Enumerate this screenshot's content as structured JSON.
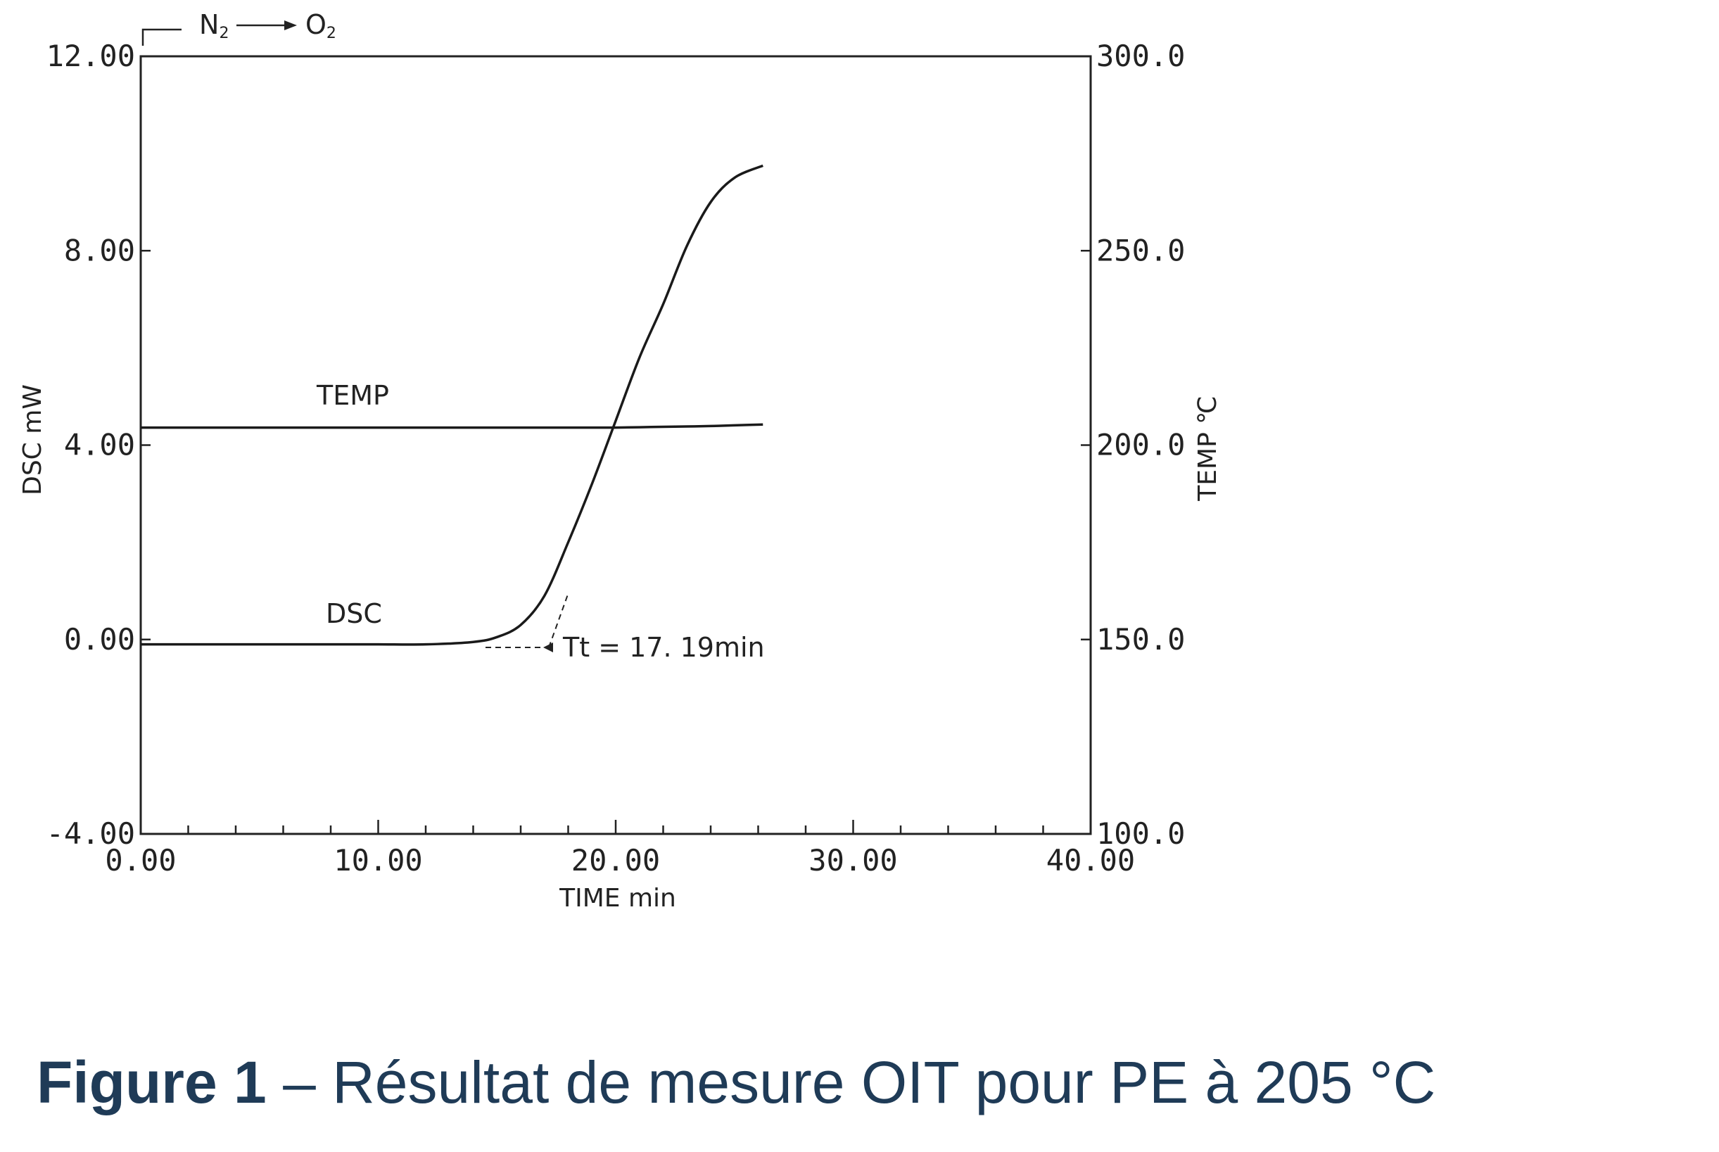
{
  "chart_data": {
    "type": "line",
    "x": [
      0,
      2,
      4,
      6,
      8,
      10,
      12,
      14,
      15,
      16,
      17,
      18,
      19,
      20,
      21,
      22,
      23,
      24,
      25,
      26.2
    ],
    "series": [
      {
        "name": "TEMP",
        "axis": "right",
        "values": [
          204.5,
          204.5,
          204.5,
          204.5,
          204.5,
          204.5,
          204.5,
          204.5,
          204.5,
          204.5,
          204.5,
          204.5,
          204.5,
          204.5,
          204.6,
          204.7,
          204.8,
          204.9,
          205.1,
          205.3
        ]
      },
      {
        "name": "DSC",
        "axis": "left",
        "values": [
          -0.1,
          -0.1,
          -0.1,
          -0.1,
          -0.1,
          -0.1,
          -0.1,
          -0.05,
          0.05,
          0.3,
          0.9,
          2.0,
          3.2,
          4.5,
          5.8,
          6.9,
          8.1,
          9.0,
          9.5,
          9.75
        ]
      }
    ],
    "xlabel": "TIME  min",
    "ylabel": "DSC  mW",
    "y2label": "TEMP  ℃",
    "xlim": [
      0,
      40
    ],
    "ylim": [
      -4,
      12
    ],
    "y2lim": [
      100,
      300
    ],
    "x_ticks": [
      "0.00",
      "10.00",
      "20.00",
      "30.00",
      "40.00"
    ],
    "y_ticks": [
      "-4.00",
      "0.00",
      "4.00",
      "8.00",
      "12.00"
    ],
    "y2_ticks": [
      "100.0",
      "150.0",
      "200.0",
      "250.0",
      "300.0"
    ],
    "y_tick_values": [
      -4,
      0,
      4,
      8,
      12
    ],
    "y2_tick_values": [
      100,
      150,
      200,
      250,
      300
    ],
    "gas_switch": {
      "from": "N",
      "from_sub": "2",
      "to": "O",
      "to_sub": "2"
    },
    "onset_annotation": {
      "text": "Tt = 17. 19min",
      "x": 17.19,
      "y": 0
    },
    "grid": false,
    "legend": "none"
  },
  "caption": {
    "bold": "Figure 1",
    "rest": " – Résultat de mesure OIT pour PE à 205 °C"
  }
}
